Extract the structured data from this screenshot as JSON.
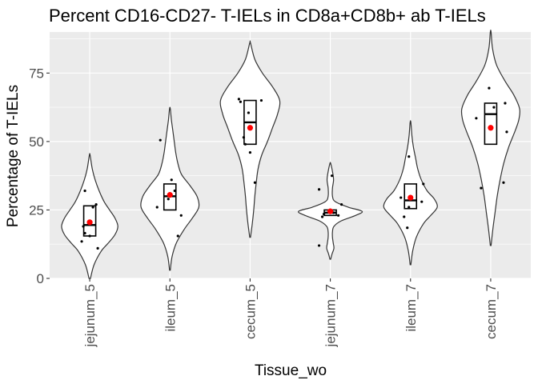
{
  "chart_data": {
    "type": "violin",
    "title": "Percent CD16-CD27- T-IELs in CD8a+CD8b+ ab T-IELs",
    "xlabel": "Tissue_wo",
    "ylabel": "Percentage of T-IELs",
    "ylim": [
      0,
      90
    ],
    "yticks": [
      0,
      25,
      50,
      75
    ],
    "grid": true,
    "legend": "none",
    "colors": {
      "panel_bg": "#ebebeb",
      "grid_major": "#ffffff",
      "violin_stroke": "#333333",
      "violin_fill": "#ffffff",
      "box_stroke": "#000000",
      "point": "#000000",
      "mean": "#ff0000"
    },
    "categories": [
      "jejunum_5",
      "ileum_5",
      "cecum_5",
      "jejunum_7",
      "ileum_7",
      "cecum_7"
    ],
    "groups": [
      {
        "category": "jejunum_5",
        "violin": {
          "ymin": 0,
          "ymax": 45,
          "density": [
            [
              0,
              0.02
            ],
            [
              5,
              0.12
            ],
            [
              10,
              0.32
            ],
            [
              13,
              0.52
            ],
            [
              16,
              0.7
            ],
            [
              19,
              0.78
            ],
            [
              22,
              0.7
            ],
            [
              25,
              0.55
            ],
            [
              28,
              0.4
            ],
            [
              32,
              0.26
            ],
            [
              36,
              0.15
            ],
            [
              40,
              0.07
            ],
            [
              45,
              0.01
            ]
          ]
        },
        "box": {
          "q1": 15.5,
          "median": 19.5,
          "q3": 26.5
        },
        "mean": 20.5,
        "points": [
          [
            -0.06,
            32
          ],
          [
            0.08,
            27
          ],
          [
            0.04,
            26
          ],
          [
            -0.08,
            19
          ],
          [
            -0.06,
            16.5
          ],
          [
            0.0,
            15.5
          ],
          [
            -0.1,
            13.5
          ],
          [
            0.1,
            11
          ]
        ]
      },
      {
        "category": "ileum_5",
        "violin": {
          "ymin": 3,
          "ymax": 62,
          "density": [
            [
              3,
              0.01
            ],
            [
              8,
              0.06
            ],
            [
              13,
              0.18
            ],
            [
              18,
              0.4
            ],
            [
              22,
              0.62
            ],
            [
              26,
              0.8
            ],
            [
              30,
              0.75
            ],
            [
              34,
              0.55
            ],
            [
              38,
              0.32
            ],
            [
              42,
              0.22
            ],
            [
              46,
              0.16
            ],
            [
              50,
              0.12
            ],
            [
              54,
              0.08
            ],
            [
              58,
              0.04
            ],
            [
              62,
              0.01
            ]
          ]
        },
        "box": {
          "q1": 25,
          "median": 30,
          "q3": 34.5
        },
        "mean": 30.5,
        "points": [
          [
            -0.12,
            50.5
          ],
          [
            0.02,
            36
          ],
          [
            0.06,
            32
          ],
          [
            -0.02,
            29
          ],
          [
            -0.16,
            26
          ],
          [
            0.14,
            23
          ],
          [
            0.1,
            15.5
          ]
        ]
      },
      {
        "category": "cecum_5",
        "violin": {
          "ymin": 15,
          "ymax": 86,
          "density": [
            [
              15,
              0.01
            ],
            [
              20,
              0.06
            ],
            [
              25,
              0.1
            ],
            [
              30,
              0.13
            ],
            [
              35,
              0.17
            ],
            [
              40,
              0.22
            ],
            [
              45,
              0.32
            ],
            [
              50,
              0.48
            ],
            [
              55,
              0.62
            ],
            [
              60,
              0.76
            ],
            [
              65,
              0.82
            ],
            [
              70,
              0.62
            ],
            [
              75,
              0.34
            ],
            [
              80,
              0.13
            ],
            [
              86,
              0.01
            ]
          ]
        },
        "box": {
          "q1": 49,
          "median": 57,
          "q3": 65
        },
        "mean": 55,
        "points": [
          [
            -0.14,
            65.5
          ],
          [
            -0.12,
            64.5
          ],
          [
            0.14,
            65
          ],
          [
            -0.02,
            60.5
          ],
          [
            -0.08,
            51.5
          ],
          [
            -0.06,
            49
          ],
          [
            0.0,
            46
          ],
          [
            0.06,
            35
          ]
        ]
      },
      {
        "category": "jejunum_7",
        "violin": {
          "ymin": 7,
          "ymax": 42,
          "density": [
            [
              7,
              0.01
            ],
            [
              9,
              0.05
            ],
            [
              11,
              0.1
            ],
            [
              13,
              0.08
            ],
            [
              15,
              0.06
            ],
            [
              17,
              0.06
            ],
            [
              19,
              0.1
            ],
            [
              21,
              0.3
            ],
            [
              23,
              0.7
            ],
            [
              24.5,
              0.88
            ],
            [
              26,
              0.5
            ],
            [
              28,
              0.14
            ],
            [
              30,
              0.06
            ],
            [
              33,
              0.06
            ],
            [
              36,
              0.09
            ],
            [
              39,
              0.06
            ],
            [
              42,
              0.01
            ]
          ]
        },
        "box": {
          "q1": 23,
          "median": 24,
          "q3": 25
        },
        "mean": 24.5,
        "points": [
          [
            0.02,
            37.5
          ],
          [
            -0.14,
            32.5
          ],
          [
            0.14,
            27
          ],
          [
            -0.08,
            23.5
          ],
          [
            0.04,
            24
          ],
          [
            -0.1,
            22.5
          ],
          [
            0.1,
            23
          ],
          [
            -0.14,
            12
          ]
        ]
      },
      {
        "category": "ileum_7",
        "violin": {
          "ymin": 5,
          "ymax": 57,
          "density": [
            [
              5,
              0.01
            ],
            [
              10,
              0.06
            ],
            [
              15,
              0.16
            ],
            [
              20,
              0.36
            ],
            [
              23,
              0.56
            ],
            [
              26,
              0.74
            ],
            [
              29,
              0.66
            ],
            [
              32,
              0.46
            ],
            [
              36,
              0.3
            ],
            [
              40,
              0.2
            ],
            [
              44,
              0.14
            ],
            [
              48,
              0.08
            ],
            [
              52,
              0.04
            ],
            [
              57,
              0.01
            ]
          ]
        },
        "box": {
          "q1": 25.5,
          "median": 28.5,
          "q3": 34.5
        },
        "mean": 29.5,
        "points": [
          [
            -0.02,
            44.5
          ],
          [
            0.16,
            34.5
          ],
          [
            -0.12,
            29.5
          ],
          [
            0.14,
            28
          ],
          [
            -0.02,
            26
          ],
          [
            -0.08,
            22.5
          ],
          [
            -0.04,
            18.5
          ]
        ]
      },
      {
        "category": "cecum_7",
        "violin": {
          "ymin": 12,
          "ymax": 90,
          "density": [
            [
              12,
              0.01
            ],
            [
              18,
              0.06
            ],
            [
              24,
              0.12
            ],
            [
              30,
              0.18
            ],
            [
              36,
              0.26
            ],
            [
              42,
              0.36
            ],
            [
              48,
              0.5
            ],
            [
              54,
              0.68
            ],
            [
              58,
              0.78
            ],
            [
              62,
              0.8
            ],
            [
              67,
              0.64
            ],
            [
              72,
              0.4
            ],
            [
              78,
              0.16
            ],
            [
              84,
              0.05
            ],
            [
              90,
              0.01
            ]
          ]
        },
        "box": {
          "q1": 49,
          "median": 60,
          "q3": 64
        },
        "mean": 55,
        "points": [
          [
            -0.02,
            69.5
          ],
          [
            0.18,
            64
          ],
          [
            0.04,
            62.5
          ],
          [
            -0.18,
            58.5
          ],
          [
            0.2,
            53.5
          ],
          [
            0.16,
            35
          ],
          [
            -0.12,
            33
          ]
        ]
      }
    ]
  }
}
